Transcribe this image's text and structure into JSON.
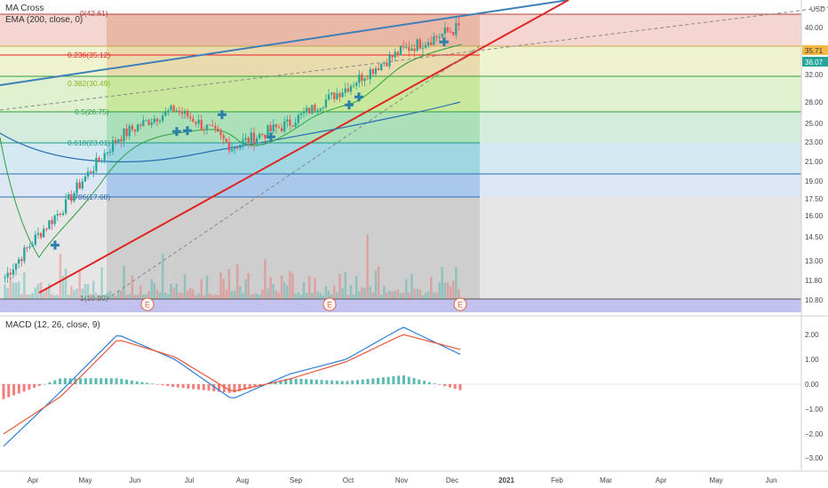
{
  "legend": {
    "ma_cross": "MA Cross",
    "ema": "EMA (200, close, 0)",
    "macd": "MACD (12, 26, close, 9)"
  },
  "currency": "USD",
  "price_axis_labels": [
    "40.00",
    "36.00",
    "32.00",
    "28.00",
    "25.00",
    "23.00",
    "21.00",
    "19.00",
    "17.50",
    "16.00",
    "14.50",
    "13.00",
    "11.80",
    "10.80"
  ],
  "price_badges": {
    "upper": "35.71",
    "lower": "36.07"
  },
  "macd_axis_labels": [
    "2.00",
    "1.00",
    "0.00",
    "−1.00",
    "−2.00",
    "−3.00"
  ],
  "time_axis_labels": [
    "Apr",
    "May",
    "Jun",
    "Jul",
    "Aug",
    "Sep",
    "Oct",
    "Nov",
    "Dec",
    "2021",
    "Feb",
    "Mar",
    "Apr",
    "May",
    "Jun"
  ],
  "earnings_marker": "E",
  "fib_levels": [
    {
      "label": "0(42.61)",
      "color": "#b0413e"
    },
    {
      "label": "0.236(35.12)",
      "color": "#e91e1e"
    },
    {
      "label": "0.382(30.49)",
      "color": "#8ab21e"
    },
    {
      "label": "0.5(26.75)",
      "color": "#2e9e3f"
    },
    {
      "label": "0.618(23.01)",
      "color": "#1a9a8a"
    },
    {
      "label": "0.786(17.68)",
      "color": "#2b6fb3"
    },
    {
      "label": "1(10.90)",
      "color": "#666666"
    }
  ],
  "chart_data": {
    "type": "line",
    "title": "",
    "x": [
      "Apr",
      "May",
      "Jun",
      "Jul",
      "Aug",
      "Sep",
      "Oct",
      "Nov",
      "Dec"
    ],
    "series": [
      {
        "name": "",
        "values": [
          12.0,
          16.5,
          23.5,
          27.0,
          22.5,
          25.0,
          30.0,
          36.0,
          40.0
        ]
      }
    ],
    "macd_x": [
      "Apr",
      "May",
      "Jun",
      "Jul",
      "Aug",
      "Sep",
      "Oct",
      "Nov",
      "Dec"
    ],
    "macd_series": [
      {
        "name": "",
        "values": [
          -2.5,
          -0.3,
          2.0,
          1.0,
          -0.6,
          0.4,
          1.0,
          2.3,
          1.2
        ]
      },
      {
        "name": "",
        "values": [
          -2.0,
          -0.5,
          1.8,
          1.1,
          -0.3,
          0.2,
          0.9,
          2.0,
          1.4
        ]
      }
    ],
    "ylim": [
      10.8,
      43
    ],
    "macd_ylim": [
      -3.2,
      2.4
    ]
  }
}
